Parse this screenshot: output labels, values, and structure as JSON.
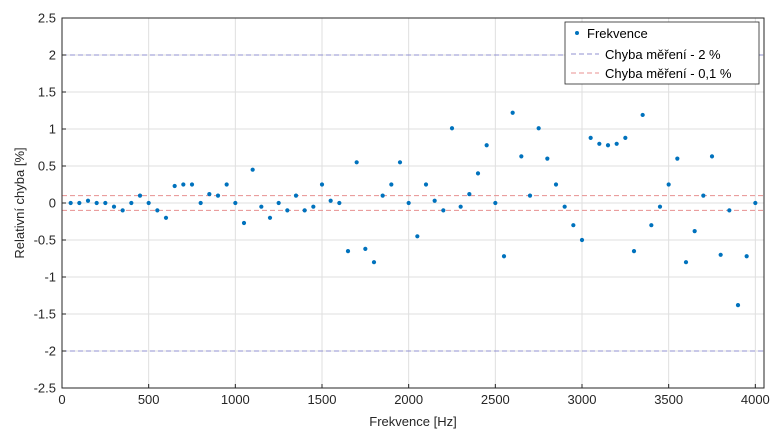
{
  "colors": {
    "points": "#0072BD",
    "line_2pct": "#9090D0",
    "line_01pct": "#E89090",
    "grid": "#DFDFDF",
    "axis": "#262626"
  },
  "chart_data": {
    "type": "scatter",
    "xlabel": "Frekvence [Hz]",
    "ylabel": "Relativní chyba [%]",
    "xlim": [
      0,
      4050
    ],
    "ylim": [
      -2.5,
      2.5
    ],
    "xticks": [
      0,
      500,
      1000,
      1500,
      2000,
      2500,
      3000,
      3500,
      4000
    ],
    "yticks": [
      -2.5,
      -2,
      -1.5,
      -1,
      -0.5,
      0,
      0.5,
      1,
      1.5,
      2,
      2.5
    ],
    "xtick_labels": [
      "0",
      "500",
      "1000",
      "1500",
      "2000",
      "2500",
      "3000",
      "3500",
      "4000"
    ],
    "ytick_labels": [
      "-2.5",
      "-2",
      "-1.5",
      "-1",
      "-0.5",
      "0",
      "0.5",
      "1",
      "1.5",
      "2",
      "2.5"
    ],
    "grid": true,
    "legend_position": "top-right",
    "series": [
      {
        "name": "Frekvence",
        "style": "markers",
        "x": [
          50,
          100,
          150,
          200,
          250,
          300,
          350,
          400,
          450,
          500,
          550,
          600,
          650,
          700,
          750,
          800,
          850,
          900,
          950,
          1000,
          1050,
          1100,
          1150,
          1200,
          1250,
          1300,
          1350,
          1400,
          1450,
          1500,
          1550,
          1600,
          1650,
          1700,
          1750,
          1800,
          1850,
          1900,
          1950,
          2000,
          2050,
          2100,
          2150,
          2200,
          2250,
          2300,
          2350,
          2400,
          2450,
          2500,
          2550,
          2600,
          2650,
          2700,
          2750,
          2800,
          2850,
          2900,
          2950,
          3000,
          3050,
          3100,
          3150,
          3200,
          3250,
          3300,
          3350,
          3400,
          3450,
          3500,
          3550,
          3600,
          3650,
          3700,
          3750,
          3800,
          3850,
          3900,
          3950,
          4000
        ],
        "y": [
          0.0,
          0.0,
          0.03,
          0.0,
          0.0,
          -0.05,
          -0.1,
          0.0,
          0.1,
          0.0,
          -0.1,
          -0.2,
          0.23,
          0.25,
          0.25,
          0.0,
          0.12,
          0.1,
          0.25,
          0.0,
          -0.27,
          0.45,
          -0.05,
          -0.2,
          0.0,
          -0.1,
          0.1,
          -0.1,
          -0.05,
          0.25,
          0.03,
          0.0,
          -0.65,
          0.55,
          -0.62,
          -0.8,
          0.1,
          0.25,
          0.55,
          0.0,
          -0.45,
          0.25,
          0.03,
          -0.1,
          1.01,
          -0.05,
          0.12,
          0.4,
          0.78,
          0.0,
          -0.72,
          1.22,
          0.63,
          0.1,
          1.01,
          0.6,
          0.25,
          -0.05,
          -0.3,
          -0.5,
          0.88,
          0.8,
          0.78,
          0.8,
          0.88,
          -0.65,
          1.19,
          -0.3,
          -0.05,
          0.25,
          0.6,
          -0.8,
          -0.38,
          0.1,
          0.63,
          -0.7,
          -0.1,
          -1.38,
          -0.72,
          0.0
        ]
      },
      {
        "name": "Chyba měření - 2 %",
        "style": "dashed",
        "levels": [
          2,
          -2
        ]
      },
      {
        "name": "Chyba měření - 0,1 %",
        "style": "dashed",
        "levels": [
          0.1,
          -0.1
        ]
      }
    ]
  }
}
